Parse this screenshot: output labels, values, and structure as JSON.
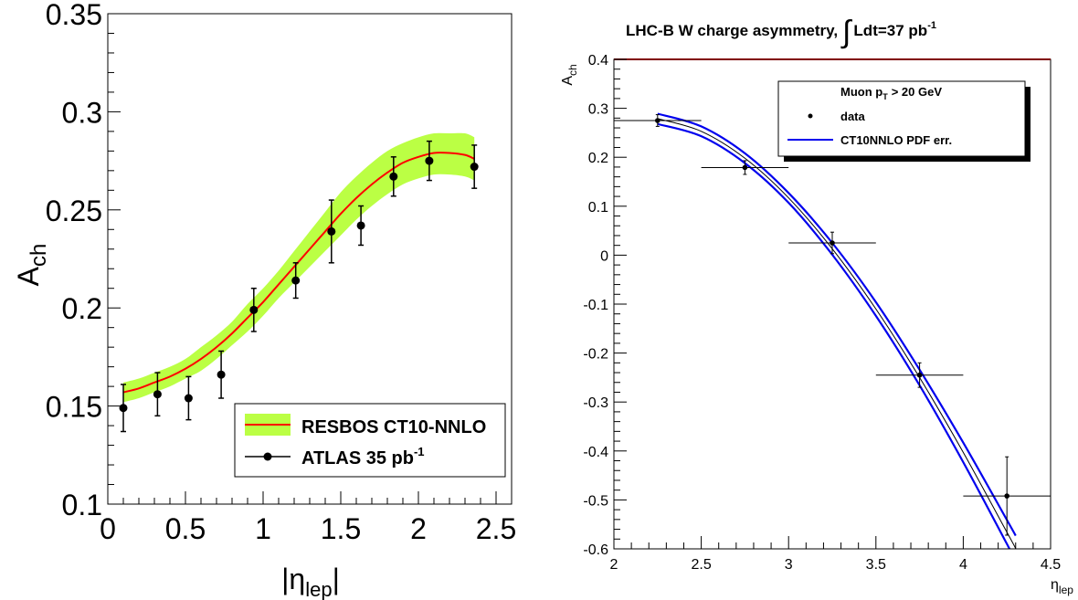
{
  "chart_data": [
    {
      "type": "line",
      "title": "",
      "xlabel": "|η",
      "xlabel_sub": "lep",
      "xlabel_tail": "|",
      "ylabel": "A",
      "ylabel_sub": "ch",
      "xlim": [
        0,
        2.6
      ],
      "ylim": [
        0.1,
        0.35
      ],
      "x_ticks": [
        "0",
        "0.5",
        "1",
        "1.5",
        "2",
        "2.5"
      ],
      "y_ticks": [
        "0.1",
        "0.15",
        "0.2",
        "0.25",
        "0.3",
        "0.35"
      ],
      "legend_position": "bottom-right",
      "colors": {
        "band": "#bbff44",
        "curve": "#ff0000",
        "data": "#000000"
      },
      "series": [
        {
          "name": "RESBOS CT10-NNLO",
          "kind": "band-with-central-curve",
          "x": [
            0.1,
            0.2,
            0.3,
            0.4,
            0.5,
            0.6,
            0.7,
            0.8,
            0.9,
            1.0,
            1.1,
            1.2,
            1.3,
            1.4,
            1.5,
            1.6,
            1.7,
            1.8,
            1.9,
            2.0,
            2.1,
            2.2,
            2.3,
            2.36
          ],
          "center": [
            0.157,
            0.159,
            0.162,
            0.165,
            0.169,
            0.174,
            0.18,
            0.187,
            0.195,
            0.203,
            0.212,
            0.221,
            0.23,
            0.239,
            0.248,
            0.256,
            0.263,
            0.269,
            0.274,
            0.277,
            0.279,
            0.279,
            0.278,
            0.276
          ],
          "lower": [
            0.152,
            0.154,
            0.157,
            0.16,
            0.164,
            0.168,
            0.174,
            0.181,
            0.188,
            0.196,
            0.205,
            0.213,
            0.221,
            0.229,
            0.237,
            0.245,
            0.252,
            0.258,
            0.263,
            0.266,
            0.268,
            0.268,
            0.267,
            0.265
          ],
          "upper": [
            0.162,
            0.164,
            0.167,
            0.17,
            0.174,
            0.18,
            0.186,
            0.193,
            0.202,
            0.21,
            0.219,
            0.229,
            0.239,
            0.249,
            0.259,
            0.267,
            0.274,
            0.28,
            0.284,
            0.287,
            0.289,
            0.289,
            0.289,
            0.287
          ]
        },
        {
          "name": "ATLAS 35 pb",
          "name_sup": "-1",
          "kind": "points-with-errors",
          "points": [
            {
              "x": 0.1,
              "y": 0.149,
              "err": 0.012
            },
            {
              "x": 0.32,
              "y": 0.156,
              "err": 0.011
            },
            {
              "x": 0.52,
              "y": 0.154,
              "err": 0.011
            },
            {
              "x": 0.73,
              "y": 0.166,
              "err": 0.012
            },
            {
              "x": 0.94,
              "y": 0.199,
              "err": 0.011
            },
            {
              "x": 1.21,
              "y": 0.214,
              "err": 0.009
            },
            {
              "x": 1.44,
              "y": 0.239,
              "err": 0.016
            },
            {
              "x": 1.63,
              "y": 0.242,
              "err": 0.01
            },
            {
              "x": 1.84,
              "y": 0.267,
              "err": 0.01
            },
            {
              "x": 2.07,
              "y": 0.275,
              "err": 0.01
            },
            {
              "x": 2.36,
              "y": 0.272,
              "err": 0.011
            }
          ]
        }
      ]
    },
    {
      "type": "line",
      "title": "LHC-B W charge asymmetry,",
      "title_integral": "∫",
      "title_tail": "Ldt=37 pb",
      "title_sup": "-1",
      "xlabel": "η",
      "xlabel_sub": "lep",
      "ylabel": "A",
      "ylabel_sub": "ch",
      "xlim": [
        2,
        4.5
      ],
      "ylim": [
        -0.6,
        0.4
      ],
      "x_ticks": [
        "2",
        "2.5",
        "3",
        "3.5",
        "4",
        "4.5"
      ],
      "y_ticks": [
        "-0.6",
        "-0.5",
        "-0.4",
        "-0.3",
        "-0.2",
        "-0.1",
        "0",
        "0.1",
        "0.2",
        "0.3",
        "0.4"
      ],
      "legend_position": "top-right",
      "legend_header": "Muon p",
      "legend_header_sub": "T",
      "legend_header_tail": "> 20 GeV",
      "colors": {
        "pdf": "#0000ee",
        "central": "#000000",
        "data": "#000000",
        "frame_top": "#800000"
      },
      "series": [
        {
          "name": "data",
          "kind": "points-with-xy-errors",
          "points": [
            {
              "x": 2.25,
              "y": 0.275,
              "xerr": 0.25,
              "yerr": 0.012
            },
            {
              "x": 2.75,
              "y": 0.179,
              "xerr": 0.25,
              "yerr": 0.014
            },
            {
              "x": 3.25,
              "y": 0.025,
              "xerr": 0.25,
              "yerr": 0.022
            },
            {
              "x": 3.75,
              "y": -0.245,
              "xerr": 0.25,
              "yerr": 0.025
            },
            {
              "x": 4.25,
              "y": -0.492,
              "xerr": 0.25,
              "yerr": 0.08
            }
          ]
        },
        {
          "name": "CT10NNLO PDF err.",
          "kind": "curve-band",
          "x": [
            2.25,
            2.5,
            2.75,
            3.0,
            3.25,
            3.5,
            3.75,
            4.0,
            4.25,
            4.3
          ],
          "center": [
            0.279,
            0.253,
            0.198,
            0.117,
            0.013,
            -0.11,
            -0.25,
            -0.403,
            -0.566,
            -0.599
          ],
          "upper": [
            0.289,
            0.263,
            0.208,
            0.127,
            0.025,
            -0.096,
            -0.234,
            -0.383,
            -0.541,
            -0.573
          ],
          "lower": [
            0.268,
            0.243,
            0.188,
            0.107,
            0.001,
            -0.124,
            -0.266,
            -0.423,
            -0.59,
            -0.625
          ]
        }
      ]
    }
  ]
}
